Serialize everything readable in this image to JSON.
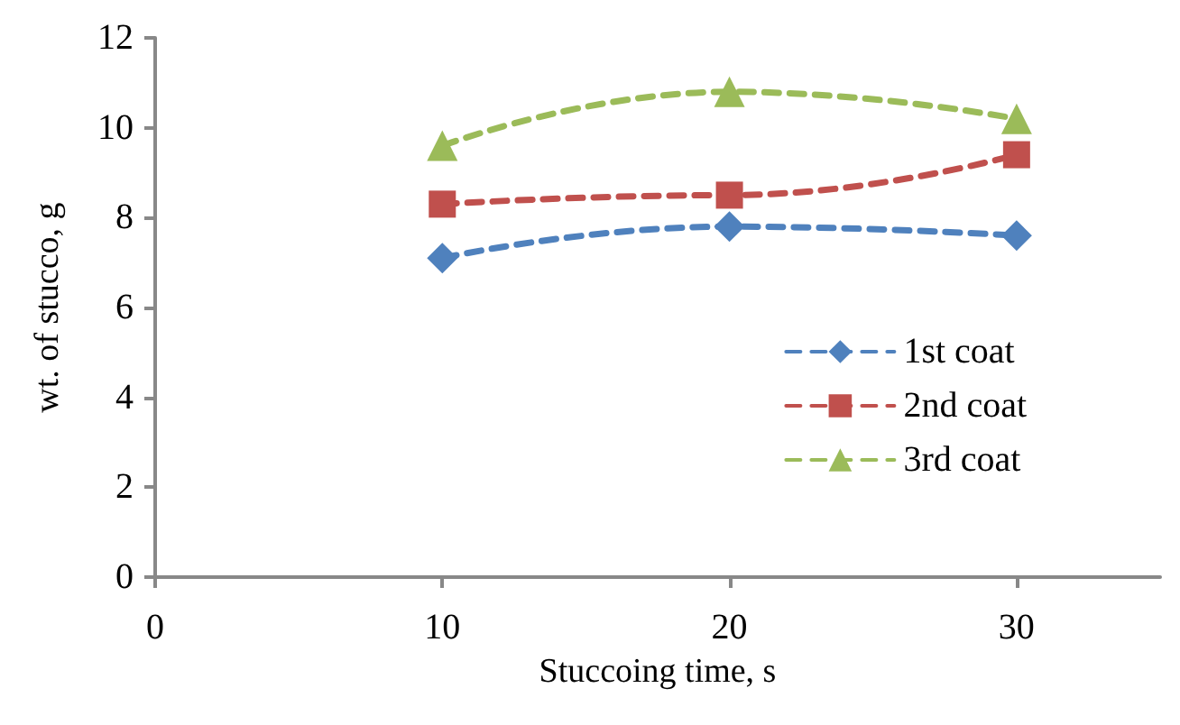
{
  "chart_data": {
    "type": "line",
    "xlabel": "Stuccoing time, s",
    "ylabel": "wt. of stucco, g",
    "x": [
      10,
      20,
      30
    ],
    "series": [
      {
        "name": "1st coat",
        "color": "#4f81bd",
        "values": [
          7.1,
          7.8,
          7.6
        ],
        "marker": "diamond"
      },
      {
        "name": "2nd coat",
        "color": "#c0504d",
        "values": [
          8.3,
          8.5,
          9.4
        ],
        "marker": "square"
      },
      {
        "name": "3rd coat",
        "color": "#9bbb59",
        "values": [
          9.6,
          10.8,
          10.2
        ],
        "marker": "triangle"
      }
    ],
    "xlim": [
      0,
      35
    ],
    "xticks": [
      0,
      10,
      20,
      30
    ],
    "ylim": [
      0,
      12
    ],
    "yticks": [
      0,
      2,
      4,
      6,
      8,
      10,
      12
    ],
    "grid": false,
    "legend": "right",
    "line_style": "dashed"
  }
}
